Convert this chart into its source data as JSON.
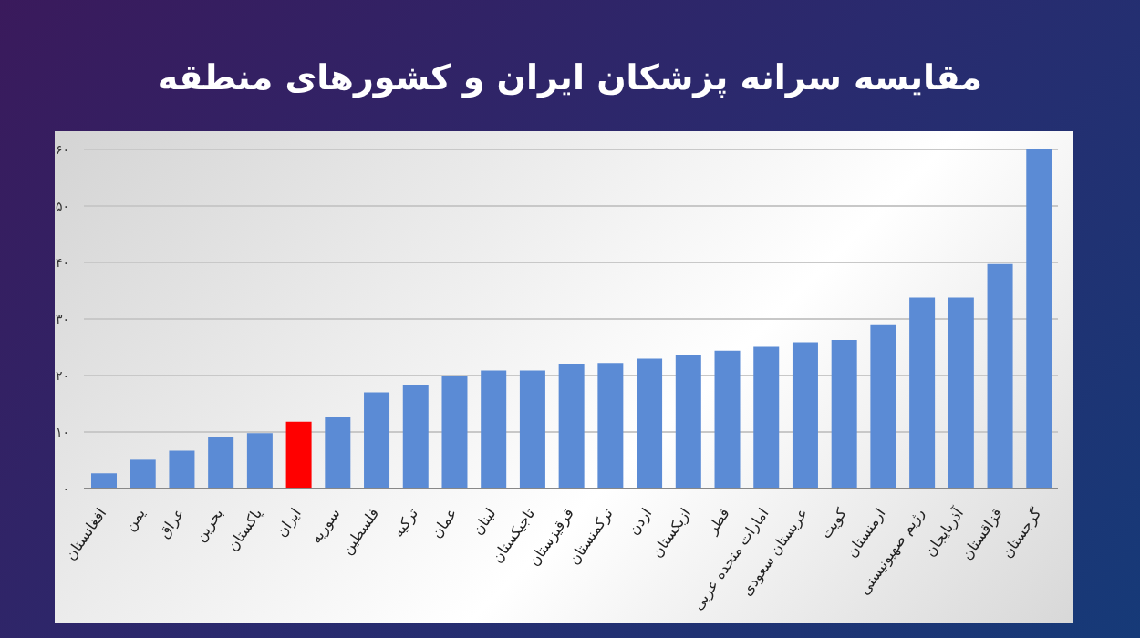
{
  "chart_data": {
    "type": "bar",
    "title": "مقایسه سرانه پزشکان ایران و کشورهای منطقه",
    "categories": [
      "افغانستان",
      "یمن",
      "عراق",
      "بحرین",
      "پاکستان",
      "ایران",
      "سوریه",
      "فلسطین",
      "ترکیه",
      "عمان",
      "لبنان",
      "تاجیکستان",
      "قرقیزستان",
      "ترکمنستان",
      "اردن",
      "ازبکستان",
      "قطر",
      "امارات متحده عربی",
      "عربستان سعودی",
      "کویت",
      "ارمنستان",
      "رژیم صهیونیستی",
      "آذربایجان",
      "قزاقستان",
      "گرجستان"
    ],
    "values": [
      2.7,
      5.1,
      6.7,
      9.1,
      9.8,
      11.8,
      12.6,
      17,
      18.4,
      19.9,
      20.9,
      20.9,
      22.1,
      22.2,
      23,
      23.6,
      24.4,
      25.1,
      25.9,
      26.3,
      28.9,
      33.8,
      33.8,
      39.7,
      60
    ],
    "colors": [
      "#5b8bd5",
      "#5b8bd5",
      "#5b8bd5",
      "#5b8bd5",
      "#5b8bd5",
      "#ff0000",
      "#5b8bd5",
      "#5b8bd5",
      "#5b8bd5",
      "#5b8bd5",
      "#5b8bd5",
      "#5b8bd5",
      "#5b8bd5",
      "#5b8bd5",
      "#5b8bd5",
      "#5b8bd5",
      "#5b8bd5",
      "#5b8bd5",
      "#5b8bd5",
      "#5b8bd5",
      "#5b8bd5",
      "#5b8bd5",
      "#5b8bd5",
      "#5b8bd5",
      "#5b8bd5"
    ],
    "ylim": [
      0,
      60
    ],
    "yticks": [
      {
        "value": 0,
        "label": "۰"
      },
      {
        "value": 10,
        "label": "۱۰"
      },
      {
        "value": 20,
        "label": "۲۰"
      },
      {
        "value": 30,
        "label": "۳۰"
      },
      {
        "value": 40,
        "label": "۴۰"
      },
      {
        "value": 50,
        "label": "۵۰"
      },
      {
        "value": 60,
        "label": "۶۰"
      }
    ],
    "grid": "y",
    "legend": false
  }
}
